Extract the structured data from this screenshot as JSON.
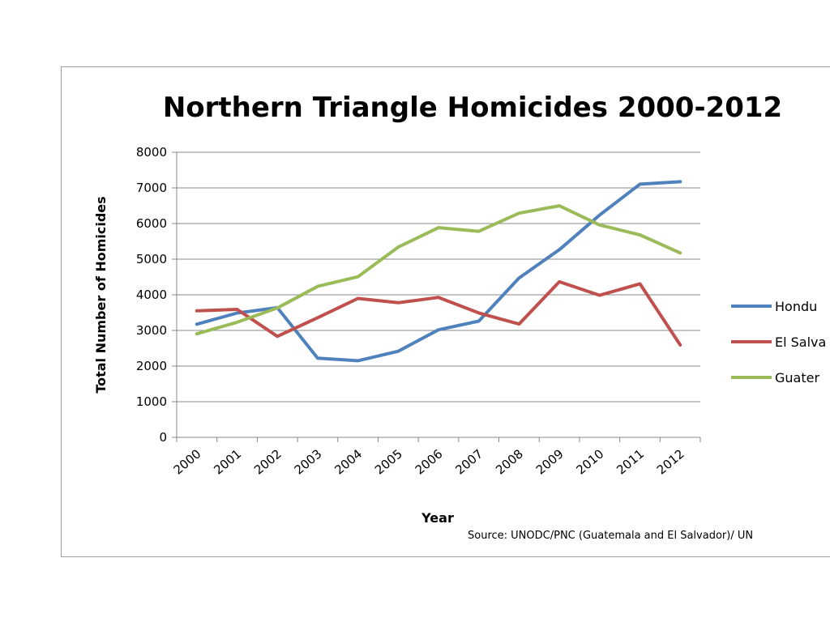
{
  "chart_data": {
    "type": "line",
    "title": "Northern Triangle Homicides 2000-2012",
    "xlabel": "Year",
    "ylabel": "Total Number of Homicides",
    "ylim": [
      0,
      8000
    ],
    "yticks": [
      0,
      1000,
      2000,
      3000,
      4000,
      5000,
      6000,
      7000,
      8000
    ],
    "categories": [
      "2000",
      "2001",
      "2002",
      "2003",
      "2004",
      "2005",
      "2006",
      "2007",
      "2008",
      "2009",
      "2010",
      "2011",
      "2012"
    ],
    "grid": true,
    "legend_position": "right",
    "series": [
      {
        "name": "Hondu",
        "color": "#4f81bd",
        "values": [
          3176,
          3488,
          3639,
          2223,
          2149,
          2417,
          3018,
          3262,
          4473,
          5265,
          6239,
          7104,
          7172
        ]
      },
      {
        "name": "El Salva",
        "color": "#c0504d",
        "values": [
          3551,
          3590,
          2835,
          3356,
          3897,
          3778,
          3928,
          3491,
          3179,
          4365,
          3987,
          4308,
          2594
        ]
      },
      {
        "name": "Guater",
        "color": "#9bbb59",
        "values": [
          2904,
          3230,
          3630,
          4237,
          4507,
          5338,
          5885,
          5781,
          6292,
          6498,
          5960,
          5681,
          5174
        ]
      }
    ],
    "source": "Source: UNODC/PNC (Guatemala and El Salvador)/ UN"
  }
}
